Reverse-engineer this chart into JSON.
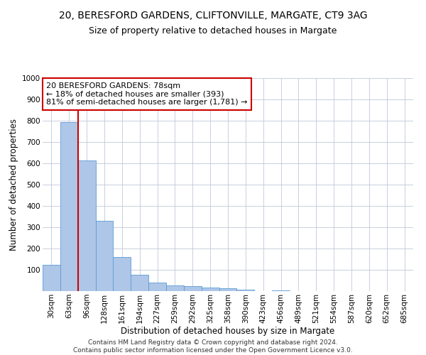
{
  "title_line1": "20, BERESFORD GARDENS, CLIFTONVILLE, MARGATE, CT9 3AG",
  "title_line2": "Size of property relative to detached houses in Margate",
  "xlabel": "Distribution of detached houses by size in Margate",
  "ylabel": "Number of detached properties",
  "bar_labels": [
    "30sqm",
    "63sqm",
    "96sqm",
    "128sqm",
    "161sqm",
    "194sqm",
    "227sqm",
    "259sqm",
    "292sqm",
    "325sqm",
    "358sqm",
    "390sqm",
    "423sqm",
    "456sqm",
    "489sqm",
    "521sqm",
    "554sqm",
    "587sqm",
    "620sqm",
    "652sqm",
    "685sqm"
  ],
  "bar_values": [
    125,
    795,
    615,
    330,
    160,
    78,
    40,
    28,
    25,
    18,
    13,
    7,
    0,
    4,
    0,
    0,
    0,
    0,
    0,
    0,
    0
  ],
  "bar_color": "#aec6e8",
  "bar_edge_color": "#5b9bd5",
  "vline_x_index": 1,
  "vline_color": "#cc0000",
  "annotation_text": "20 BERESFORD GARDENS: 78sqm\n← 18% of detached houses are smaller (393)\n81% of semi-detached houses are larger (1,781) →",
  "annotation_box_color": "#ffffff",
  "annotation_box_edge": "#cc0000",
  "ylim": [
    0,
    1000
  ],
  "yticks": [
    0,
    100,
    200,
    300,
    400,
    500,
    600,
    700,
    800,
    900,
    1000
  ],
  "bg_color": "#ffffff",
  "grid_color": "#c0c8d8",
  "footnote": "Contains HM Land Registry data © Crown copyright and database right 2024.\nContains public sector information licensed under the Open Government Licence v3.0.",
  "title_fontsize": 10,
  "subtitle_fontsize": 9,
  "axis_label_fontsize": 8.5,
  "tick_fontsize": 7.5,
  "annotation_fontsize": 8,
  "footnote_fontsize": 6.5
}
